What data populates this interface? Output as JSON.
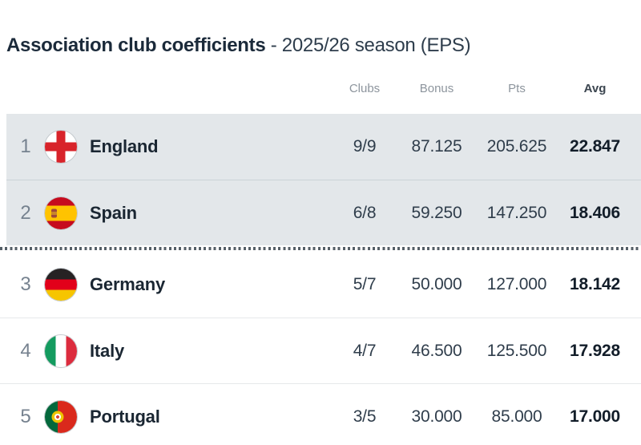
{
  "title": {
    "main": "Association club coefficients",
    "suffix": "- 2025/26 season (EPS)"
  },
  "table": {
    "headers": {
      "clubs": "Clubs",
      "bonus": "Bonus",
      "pts": "Pts",
      "avg": "Avg"
    },
    "rows": [
      {
        "rank": "1",
        "country": "England",
        "flag": "england-flag",
        "clubs": "9/9",
        "bonus": "87.125",
        "pts": "205.625",
        "avg": "22.847",
        "highlighted": true
      },
      {
        "rank": "2",
        "country": "Spain",
        "flag": "spain-flag",
        "clubs": "6/8",
        "bonus": "59.250",
        "pts": "147.250",
        "avg": "18.406",
        "highlighted": true
      },
      {
        "rank": "3",
        "country": "Germany",
        "flag": "germany-flag",
        "clubs": "5/7",
        "bonus": "50.000",
        "pts": "127.000",
        "avg": "18.142",
        "highlighted": false
      },
      {
        "rank": "4",
        "country": "Italy",
        "flag": "italy-flag",
        "clubs": "4/7",
        "bonus": "46.500",
        "pts": "125.500",
        "avg": "17.928",
        "highlighted": false
      },
      {
        "rank": "5",
        "country": "Portugal",
        "flag": "portugal-flag",
        "clubs": "3/5",
        "bonus": "30.000",
        "pts": "85.000",
        "avg": "17.000",
        "highlighted": false
      }
    ]
  },
  "colors": {
    "highlight_row_background": "#e3e7ea",
    "cutoff_dotted_line": "#545e66",
    "title_text": "#1b2a3a",
    "value_text": "#2f3d4b",
    "header_muted": "#8d959d"
  }
}
